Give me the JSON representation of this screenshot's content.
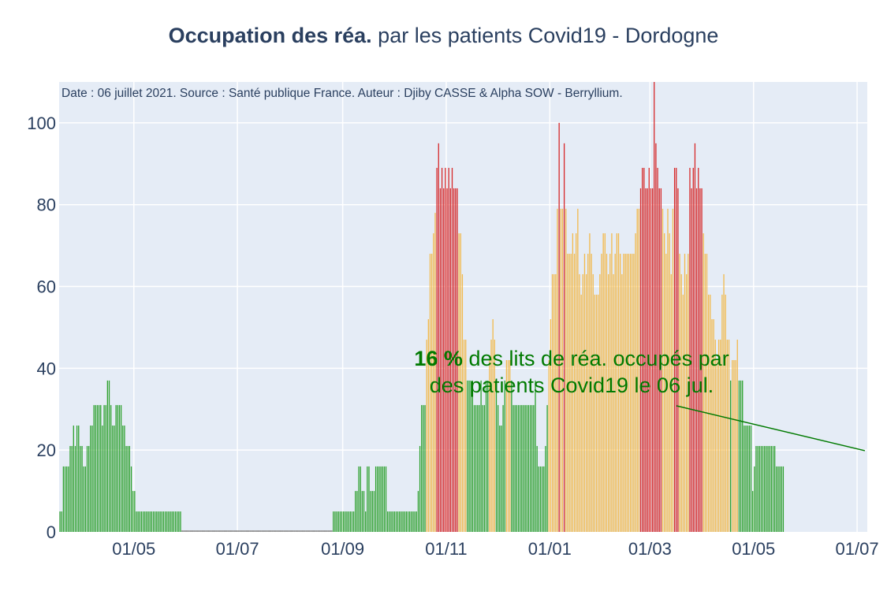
{
  "title": {
    "bold": "Occupation des réa.",
    "rest": "par les patients Covid19 - Dordogne"
  },
  "note": "Date : 06 juillet 2021. Source : Santé publique France. Auteur : Djiby CASSE & Alpha SOW - Berryllium.",
  "annotation": {
    "value": "16  %",
    "line1_rest": "des lits de réa. occupés par",
    "line2": "des patients Covid19 le 06 jul."
  },
  "colors": {
    "green": "#2ca02c",
    "orange": "#f2b94b",
    "red": "#d62728",
    "plot_bg": "#e5ecf6",
    "annotation": "#007a00"
  },
  "chart_data": {
    "type": "bar",
    "title": "Occupation des réa. par les patients Covid19 - Dordogne",
    "xlabel": "",
    "ylabel": "",
    "x_range": [
      "2020-03-18",
      "2021-07-06"
    ],
    "ylim": [
      0,
      110
    ],
    "y_ticks": [
      0,
      20,
      40,
      60,
      80,
      100
    ],
    "x_ticks": [
      "2020-05-01",
      "2020-07-01",
      "2020-09-01",
      "2020-11-01",
      "2021-01-01",
      "2021-03-01",
      "2021-05-01",
      "2021-07-01"
    ],
    "x_tick_labels": [
      "01/05",
      "01/07",
      "01/09",
      "01/11",
      "01/01",
      "01/03",
      "01/05",
      "01/07"
    ],
    "grid": true,
    "color_rule": "green below 40%, orange 40-80%, red above 80%",
    "segments": [
      {
        "start": "2020-03-18",
        "values": [
          5,
          5,
          16,
          16,
          16,
          16,
          21,
          21,
          26,
          21,
          26,
          26,
          21,
          21,
          16,
          16,
          21,
          21,
          26,
          26,
          31,
          31,
          31,
          31,
          31,
          26,
          31,
          31,
          37,
          37,
          31,
          26,
          26,
          31,
          31,
          31,
          31,
          26,
          26,
          21,
          21,
          21,
          16,
          10,
          10,
          5,
          5,
          5,
          5,
          5,
          5,
          5,
          5,
          5,
          5,
          5,
          5,
          5,
          5,
          5,
          5,
          5,
          5,
          5,
          5,
          5,
          5,
          5,
          5,
          5,
          5,
          5
        ]
      },
      {
        "start": "2020-05-29",
        "values": [
          0,
          0,
          0,
          0,
          0,
          0,
          0,
          0,
          0,
          0,
          0,
          0,
          0,
          0,
          0,
          0,
          0,
          0,
          0,
          0,
          0,
          0,
          0,
          0,
          0,
          0,
          0,
          0,
          0,
          0,
          0,
          0,
          0,
          0,
          0,
          0,
          0,
          0,
          0,
          0,
          0,
          0,
          0,
          0,
          0,
          0,
          0,
          0,
          0,
          0,
          0,
          0,
          0,
          0,
          0,
          0,
          0,
          0,
          0,
          0,
          0,
          0,
          0,
          0,
          0,
          0,
          0,
          0,
          0,
          0,
          0,
          0,
          0,
          0,
          0,
          0,
          0,
          0,
          0,
          0,
          0,
          0,
          0,
          0,
          0,
          0,
          0,
          0,
          0
        ]
      },
      {
        "start": "2020-08-26",
        "values": [
          5,
          5,
          5,
          5,
          5,
          5,
          5,
          5,
          5,
          5,
          5,
          5,
          5,
          10,
          10,
          16,
          16,
          10,
          10,
          5,
          16,
          16,
          10,
          10,
          10,
          16,
          16,
          16,
          16,
          16,
          16,
          16,
          5,
          5,
          5,
          5,
          5,
          5,
          5,
          5,
          5,
          5,
          5,
          5,
          5,
          5,
          5,
          5,
          5,
          5,
          10,
          21,
          31,
          31,
          31
        ]
      },
      {
        "start": "2020-10-20",
        "values": [
          47,
          52,
          68,
          68,
          73,
          78,
          89,
          95,
          84,
          89,
          84,
          89,
          84,
          89,
          84,
          89,
          84,
          84,
          84,
          73,
          73,
          63,
          47,
          47,
          37,
          37,
          37,
          37,
          31,
          31,
          31,
          31,
          37,
          31,
          31,
          37,
          37,
          42,
          47,
          52,
          47,
          37,
          31,
          26,
          26,
          31,
          37,
          42,
          42,
          42,
          37,
          31,
          31,
          31,
          31,
          31,
          31,
          31,
          31,
          31,
          31,
          31,
          31,
          31,
          37,
          21,
          16,
          16,
          16,
          16,
          21,
          31,
          42,
          52,
          63,
          63,
          63,
          79,
          100,
          79,
          79,
          95,
          79,
          68,
          68,
          68,
          73,
          68,
          73,
          79,
          63,
          58,
          63,
          68,
          63,
          68,
          73,
          68,
          63,
          58,
          58,
          58,
          63,
          68,
          73,
          73,
          68,
          63,
          68,
          73,
          63,
          68,
          73,
          73,
          68,
          63,
          68,
          68,
          68,
          68,
          68,
          68,
          68,
          73,
          79,
          79,
          84,
          89,
          89,
          84,
          84,
          89,
          84,
          84,
          110,
          95,
          89,
          84,
          84,
          79,
          73,
          68,
          79,
          73,
          63,
          79,
          89,
          89,
          84,
          68,
          63,
          58,
          68,
          63,
          68,
          89,
          84,
          89,
          95,
          84,
          89,
          84,
          84,
          73,
          68,
          68,
          58,
          58,
          52,
          52,
          47,
          42,
          47,
          47,
          58,
          63,
          58,
          47,
          47,
          37,
          42,
          42,
          42,
          47,
          37,
          37,
          37,
          26,
          26,
          26,
          26,
          26,
          10,
          16,
          21,
          21,
          21,
          21,
          21,
          21,
          21,
          21,
          21,
          21,
          21,
          21,
          16,
          16,
          16,
          16,
          16
        ]
      }
    ],
    "annotation_point": {
      "x": "2021-07-06",
      "y": 16
    }
  }
}
